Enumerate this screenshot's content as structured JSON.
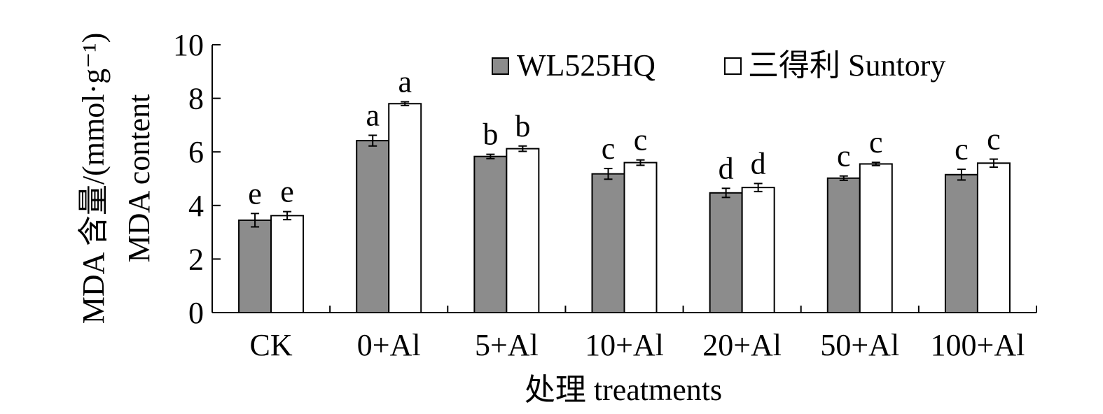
{
  "chart_data": {
    "type": "bar",
    "categories": [
      "CK",
      "0+Al",
      "5+Al",
      "10+Al",
      "20+Al",
      "50+Al",
      "100+Al"
    ],
    "series": [
      {
        "name": "WL525HQ",
        "color": "#8c8c8c",
        "values": [
          3.45,
          6.42,
          5.83,
          5.18,
          4.47,
          5.02,
          5.15
        ],
        "errors": [
          0.25,
          0.2,
          0.08,
          0.2,
          0.17,
          0.08,
          0.2
        ],
        "labels": [
          "e",
          "a",
          "b",
          "c",
          "d",
          "c",
          "c"
        ]
      },
      {
        "name": "三得利 Suntory",
        "color": "#ffffff",
        "values": [
          3.62,
          7.8,
          6.12,
          5.6,
          4.67,
          5.55,
          5.58
        ],
        "errors": [
          0.15,
          0.07,
          0.1,
          0.1,
          0.15,
          0.06,
          0.15
        ],
        "labels": [
          "e",
          "a",
          "b",
          "c",
          "d",
          "c",
          "c"
        ]
      }
    ],
    "xlabel": "处理 treatments",
    "ylabel_line1": "MDA 含量/(mmol·g⁻¹)",
    "ylabel_line2": "MDA content",
    "ylim": [
      0,
      10
    ],
    "yticks": [
      0,
      2,
      4,
      6,
      8,
      10
    ],
    "grid": false,
    "legend_position": "top-right"
  }
}
